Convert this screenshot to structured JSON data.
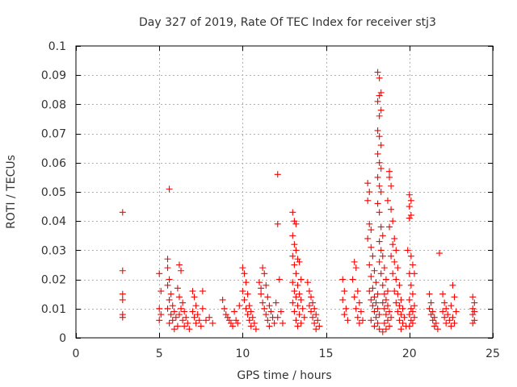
{
  "chart_data": {
    "type": "scatter",
    "title": "Day 327 of 2019, Rate Of TEC Index for receiver stj3",
    "xlabel": "GPS time / hours",
    "ylabel": "ROTI / TECUs",
    "xlim": [
      0,
      25
    ],
    "ylim": [
      0,
      0.1
    ],
    "xticks": [
      0,
      5,
      10,
      15,
      20,
      25
    ],
    "yticks": [
      0,
      0.01,
      0.02,
      0.03,
      0.04,
      0.05,
      0.06,
      0.07,
      0.08,
      0.09,
      0.1
    ],
    "grid": true,
    "marker": "plus",
    "color": "#ff0000",
    "series": [
      {
        "name": "ROTI",
        "points": [
          [
            2.8,
            0.043
          ],
          [
            2.8,
            0.023
          ],
          [
            2.8,
            0.015
          ],
          [
            2.8,
            0.013
          ],
          [
            2.8,
            0.008
          ],
          [
            2.8,
            0.007
          ],
          [
            5.0,
            0.022
          ],
          [
            5.1,
            0.016
          ],
          [
            5.0,
            0.01
          ],
          [
            5.1,
            0.008
          ],
          [
            5.0,
            0.006
          ],
          [
            5.6,
            0.051
          ],
          [
            5.5,
            0.027
          ],
          [
            5.5,
            0.024
          ],
          [
            5.6,
            0.02
          ],
          [
            5.5,
            0.018
          ],
          [
            5.7,
            0.015
          ],
          [
            5.6,
            0.013
          ],
          [
            5.8,
            0.011
          ],
          [
            5.5,
            0.01
          ],
          [
            5.9,
            0.009
          ],
          [
            5.7,
            0.008
          ],
          [
            6.0,
            0.007
          ],
          [
            5.8,
            0.006
          ],
          [
            5.6,
            0.005
          ],
          [
            6.1,
            0.004
          ],
          [
            5.9,
            0.003
          ],
          [
            6.2,
            0.025
          ],
          [
            6.3,
            0.023
          ],
          [
            6.1,
            0.017
          ],
          [
            6.2,
            0.014
          ],
          [
            6.4,
            0.012
          ],
          [
            6.3,
            0.01
          ],
          [
            6.5,
            0.009
          ],
          [
            6.2,
            0.008
          ],
          [
            6.6,
            0.007
          ],
          [
            6.4,
            0.006
          ],
          [
            6.7,
            0.005
          ],
          [
            6.5,
            0.004
          ],
          [
            6.8,
            0.003
          ],
          [
            7.0,
            0.016
          ],
          [
            7.1,
            0.014
          ],
          [
            7.2,
            0.011
          ],
          [
            7.0,
            0.009
          ],
          [
            7.3,
            0.008
          ],
          [
            7.1,
            0.007
          ],
          [
            7.4,
            0.006
          ],
          [
            7.2,
            0.005
          ],
          [
            7.5,
            0.004
          ],
          [
            7.6,
            0.016
          ],
          [
            7.6,
            0.01
          ],
          [
            7.8,
            0.006
          ],
          [
            8.0,
            0.007
          ],
          [
            8.2,
            0.005
          ],
          [
            8.8,
            0.013
          ],
          [
            8.9,
            0.01
          ],
          [
            9.0,
            0.008
          ],
          [
            9.1,
            0.007
          ],
          [
            9.2,
            0.006
          ],
          [
            9.3,
            0.005
          ],
          [
            9.4,
            0.004
          ],
          [
            9.5,
            0.009
          ],
          [
            9.6,
            0.006
          ],
          [
            9.7,
            0.005
          ],
          [
            9.8,
            0.011
          ],
          [
            10.0,
            0.024
          ],
          [
            10.1,
            0.022
          ],
          [
            10.2,
            0.019
          ],
          [
            10.0,
            0.016
          ],
          [
            10.3,
            0.015
          ],
          [
            10.1,
            0.013
          ],
          [
            10.4,
            0.011
          ],
          [
            10.2,
            0.01
          ],
          [
            10.5,
            0.009
          ],
          [
            10.3,
            0.008
          ],
          [
            10.6,
            0.007
          ],
          [
            10.4,
            0.006
          ],
          [
            10.7,
            0.005
          ],
          [
            10.5,
            0.004
          ],
          [
            10.8,
            0.003
          ],
          [
            11.0,
            0.019
          ],
          [
            11.1,
            0.017
          ],
          [
            11.2,
            0.024
          ],
          [
            11.3,
            0.022
          ],
          [
            11.4,
            0.018
          ],
          [
            11.1,
            0.015
          ],
          [
            11.5,
            0.014
          ],
          [
            11.2,
            0.012
          ],
          [
            11.6,
            0.011
          ],
          [
            11.3,
            0.01
          ],
          [
            11.7,
            0.009
          ],
          [
            11.4,
            0.008
          ],
          [
            11.8,
            0.007
          ],
          [
            11.5,
            0.006
          ],
          [
            11.9,
            0.005
          ],
          [
            11.6,
            0.004
          ],
          [
            12.1,
            0.056
          ],
          [
            12.1,
            0.039
          ],
          [
            12.2,
            0.02
          ],
          [
            12.0,
            0.012
          ],
          [
            12.3,
            0.009
          ],
          [
            12.1,
            0.007
          ],
          [
            12.4,
            0.005
          ],
          [
            13.0,
            0.043
          ],
          [
            13.1,
            0.04
          ],
          [
            13.2,
            0.039
          ],
          [
            13.0,
            0.035
          ],
          [
            13.1,
            0.032
          ],
          [
            13.2,
            0.03
          ],
          [
            13.0,
            0.028
          ],
          [
            13.3,
            0.027
          ],
          [
            13.1,
            0.025
          ],
          [
            13.4,
            0.026
          ],
          [
            13.2,
            0.022
          ],
          [
            13.5,
            0.02
          ],
          [
            13.0,
            0.019
          ],
          [
            13.3,
            0.018
          ],
          [
            13.1,
            0.016
          ],
          [
            13.4,
            0.015
          ],
          [
            13.2,
            0.014
          ],
          [
            13.5,
            0.013
          ],
          [
            13.0,
            0.012
          ],
          [
            13.3,
            0.011
          ],
          [
            13.6,
            0.01
          ],
          [
            13.1,
            0.009
          ],
          [
            13.4,
            0.008
          ],
          [
            13.7,
            0.007
          ],
          [
            13.2,
            0.006
          ],
          [
            13.5,
            0.005
          ],
          [
            13.3,
            0.004
          ],
          [
            13.9,
            0.019
          ],
          [
            14.0,
            0.016
          ],
          [
            14.1,
            0.014
          ],
          [
            14.2,
            0.012
          ],
          [
            14.0,
            0.011
          ],
          [
            14.3,
            0.01
          ],
          [
            14.1,
            0.009
          ],
          [
            14.4,
            0.008
          ],
          [
            14.2,
            0.007
          ],
          [
            14.5,
            0.006
          ],
          [
            14.3,
            0.005
          ],
          [
            14.6,
            0.004
          ],
          [
            14.4,
            0.003
          ],
          [
            16.0,
            0.02
          ],
          [
            16.1,
            0.016
          ],
          [
            16.0,
            0.013
          ],
          [
            16.2,
            0.01
          ],
          [
            16.1,
            0.008
          ],
          [
            16.3,
            0.006
          ],
          [
            16.7,
            0.026
          ],
          [
            16.8,
            0.024
          ],
          [
            16.6,
            0.02
          ],
          [
            16.9,
            0.016
          ],
          [
            16.7,
            0.014
          ],
          [
            17.0,
            0.012
          ],
          [
            16.8,
            0.01
          ],
          [
            17.1,
            0.009
          ],
          [
            16.9,
            0.007
          ],
          [
            17.2,
            0.006
          ],
          [
            17.0,
            0.005
          ],
          [
            17.5,
            0.053
          ],
          [
            17.6,
            0.05
          ],
          [
            17.5,
            0.047
          ],
          [
            17.6,
            0.039
          ],
          [
            17.7,
            0.037
          ],
          [
            17.5,
            0.034
          ],
          [
            17.7,
            0.031
          ],
          [
            17.8,
            0.028
          ],
          [
            17.6,
            0.025
          ],
          [
            17.9,
            0.023
          ],
          [
            17.7,
            0.021
          ],
          [
            18.0,
            0.019
          ],
          [
            17.8,
            0.017
          ],
          [
            17.6,
            0.016
          ],
          [
            18.1,
            0.015
          ],
          [
            17.9,
            0.014
          ],
          [
            17.7,
            0.013
          ],
          [
            18.0,
            0.012
          ],
          [
            17.8,
            0.011
          ],
          [
            18.1,
            0.01
          ],
          [
            17.9,
            0.009
          ],
          [
            18.2,
            0.008
          ],
          [
            18.0,
            0.007
          ],
          [
            17.7,
            0.006
          ],
          [
            18.1,
            0.005
          ],
          [
            17.9,
            0.004
          ],
          [
            18.2,
            0.003
          ],
          [
            18.1,
            0.091
          ],
          [
            18.2,
            0.089
          ],
          [
            18.3,
            0.084
          ],
          [
            18.2,
            0.083
          ],
          [
            18.1,
            0.081
          ],
          [
            18.3,
            0.078
          ],
          [
            18.2,
            0.076
          ],
          [
            18.1,
            0.071
          ],
          [
            18.2,
            0.069
          ],
          [
            18.3,
            0.066
          ],
          [
            18.1,
            0.063
          ],
          [
            18.2,
            0.06
          ],
          [
            18.3,
            0.058
          ],
          [
            18.1,
            0.055
          ],
          [
            18.2,
            0.052
          ],
          [
            18.3,
            0.05
          ],
          [
            18.1,
            0.046
          ],
          [
            18.2,
            0.043
          ],
          [
            18.3,
            0.038
          ],
          [
            18.4,
            0.035
          ],
          [
            18.2,
            0.033
          ],
          [
            18.3,
            0.03
          ],
          [
            18.4,
            0.028
          ],
          [
            18.2,
            0.026
          ],
          [
            18.5,
            0.024
          ],
          [
            18.3,
            0.022
          ],
          [
            18.6,
            0.02
          ],
          [
            18.4,
            0.018
          ],
          [
            18.7,
            0.016
          ],
          [
            18.5,
            0.015
          ],
          [
            18.6,
            0.013
          ],
          [
            18.4,
            0.012
          ],
          [
            18.7,
            0.011
          ],
          [
            18.5,
            0.01
          ],
          [
            18.8,
            0.009
          ],
          [
            18.6,
            0.008
          ],
          [
            18.9,
            0.007
          ],
          [
            18.7,
            0.006
          ],
          [
            18.5,
            0.005
          ],
          [
            18.8,
            0.004
          ],
          [
            18.6,
            0.003
          ],
          [
            18.4,
            0.002
          ],
          [
            18.8,
            0.057
          ],
          [
            18.8,
            0.055
          ],
          [
            18.9,
            0.052
          ],
          [
            18.7,
            0.047
          ],
          [
            18.9,
            0.044
          ],
          [
            19.0,
            0.04
          ],
          [
            18.8,
            0.038
          ],
          [
            19.1,
            0.034
          ],
          [
            19.0,
            0.032
          ],
          [
            19.2,
            0.03
          ],
          [
            18.9,
            0.028
          ],
          [
            19.1,
            0.026
          ],
          [
            19.3,
            0.024
          ],
          [
            19.0,
            0.022
          ],
          [
            19.2,
            0.02
          ],
          [
            19.4,
            0.018
          ],
          [
            19.1,
            0.016
          ],
          [
            19.3,
            0.015
          ],
          [
            19.5,
            0.013
          ],
          [
            19.2,
            0.012
          ],
          [
            19.4,
            0.011
          ],
          [
            19.6,
            0.01
          ],
          [
            19.3,
            0.009
          ],
          [
            19.5,
            0.008
          ],
          [
            19.7,
            0.007
          ],
          [
            19.4,
            0.006
          ],
          [
            19.6,
            0.005
          ],
          [
            19.8,
            0.004
          ],
          [
            19.5,
            0.003
          ],
          [
            20.0,
            0.049
          ],
          [
            20.1,
            0.047
          ],
          [
            20.0,
            0.045
          ],
          [
            20.1,
            0.042
          ],
          [
            20.0,
            0.041
          ],
          [
            19.9,
            0.03
          ],
          [
            20.1,
            0.028
          ],
          [
            20.2,
            0.025
          ],
          [
            20.0,
            0.022
          ],
          [
            20.3,
            0.022
          ],
          [
            20.1,
            0.018
          ],
          [
            20.2,
            0.015
          ],
          [
            20.0,
            0.013
          ],
          [
            20.3,
            0.011
          ],
          [
            20.1,
            0.01
          ],
          [
            20.2,
            0.009
          ],
          [
            20.0,
            0.008
          ],
          [
            20.3,
            0.007
          ],
          [
            20.1,
            0.006
          ],
          [
            20.2,
            0.005
          ],
          [
            20.0,
            0.004
          ],
          [
            21.8,
            0.029
          ],
          [
            21.2,
            0.015
          ],
          [
            21.3,
            0.012
          ],
          [
            21.2,
            0.01
          ],
          [
            21.4,
            0.009
          ],
          [
            21.3,
            0.008
          ],
          [
            21.5,
            0.007
          ],
          [
            21.4,
            0.006
          ],
          [
            21.6,
            0.005
          ],
          [
            21.5,
            0.004
          ],
          [
            21.7,
            0.003
          ],
          [
            22.0,
            0.015
          ],
          [
            22.1,
            0.012
          ],
          [
            22.2,
            0.01
          ],
          [
            22.0,
            0.009
          ],
          [
            22.3,
            0.008
          ],
          [
            22.1,
            0.007
          ],
          [
            22.4,
            0.006
          ],
          [
            22.2,
            0.005
          ],
          [
            22.5,
            0.004
          ],
          [
            22.6,
            0.018
          ],
          [
            22.7,
            0.014
          ],
          [
            22.5,
            0.011
          ],
          [
            22.8,
            0.009
          ],
          [
            22.6,
            0.007
          ],
          [
            22.7,
            0.005
          ],
          [
            23.8,
            0.014
          ],
          [
            23.9,
            0.012
          ],
          [
            23.8,
            0.01
          ],
          [
            23.9,
            0.009
          ],
          [
            23.8,
            0.008
          ],
          [
            23.9,
            0.006
          ],
          [
            23.8,
            0.005
          ]
        ]
      }
    ]
  }
}
